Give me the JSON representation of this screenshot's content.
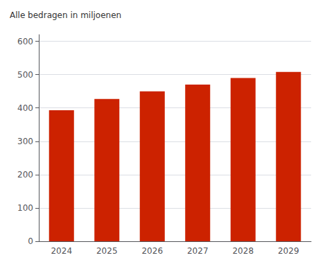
{
  "chart_data": {
    "type": "bar",
    "annotation": "Alle bedragen in miljoenen",
    "categories": [
      "2024",
      "2025",
      "2026",
      "2027",
      "2028",
      "2029"
    ],
    "values": [
      393,
      427,
      450,
      470,
      490,
      508
    ],
    "color": "#cc2200",
    "ylim": [
      0,
      620
    ],
    "yticks": [
      0,
      100,
      200,
      300,
      400,
      500,
      600
    ],
    "grid": true
  }
}
